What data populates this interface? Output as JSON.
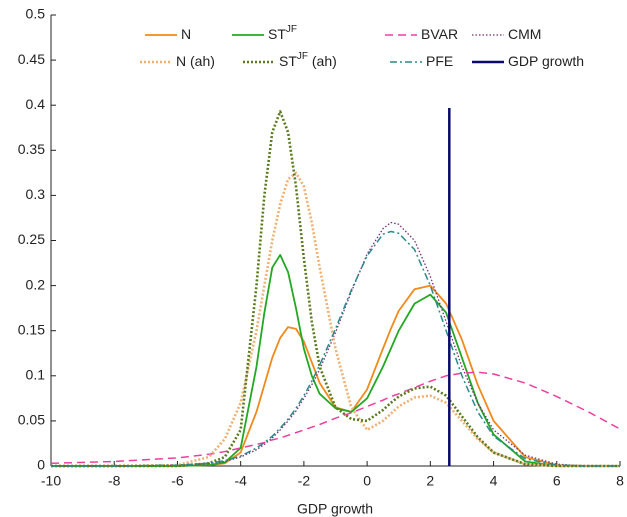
{
  "chart_data": {
    "type": "line",
    "xlabel": "GDP growth",
    "xlim": [
      -10,
      8
    ],
    "ylim": [
      0,
      0.5
    ],
    "xticks": [
      -10,
      -8,
      -6,
      -4,
      -2,
      0,
      2,
      4,
      6,
      8
    ],
    "yticks": [
      0,
      0.05,
      0.1,
      0.15,
      0.2,
      0.25,
      0.3,
      0.35,
      0.4,
      0.45,
      0.5
    ],
    "x": [
      -10,
      -8,
      -6,
      -5,
      -4.5,
      -4,
      -3.5,
      -3.25,
      -3,
      -2.75,
      -2.5,
      -2.25,
      -2,
      -1.75,
      -1.5,
      -1,
      -0.5,
      0,
      0.5,
      0.75,
      1,
      1.5,
      2,
      2.5,
      3,
      3.5,
      4,
      5,
      6,
      7,
      8
    ],
    "series": [
      {
        "name": "N",
        "color": "#f08a1c",
        "style": "solid",
        "values": [
          0,
          0,
          0,
          0.001,
          0.003,
          0.015,
          0.06,
          0.09,
          0.12,
          0.142,
          0.154,
          0.152,
          0.138,
          0.115,
          0.092,
          0.065,
          0.06,
          0.085,
          0.13,
          0.152,
          0.172,
          0.196,
          0.2,
          0.18,
          0.14,
          0.09,
          0.05,
          0.01,
          0.001,
          0,
          0
        ]
      },
      {
        "name": "ST",
        "name_sup": "JF",
        "color": "#22a822",
        "style": "solid",
        "values": [
          0,
          0,
          0,
          0.001,
          0.004,
          0.02,
          0.11,
          0.17,
          0.22,
          0.234,
          0.215,
          0.175,
          0.13,
          0.1,
          0.08,
          0.064,
          0.06,
          0.075,
          0.11,
          0.13,
          0.15,
          0.18,
          0.19,
          0.17,
          0.12,
          0.07,
          0.035,
          0.005,
          0,
          0,
          0
        ]
      },
      {
        "name": "BVAR",
        "color": "#ee3fa0",
        "style": "dashed",
        "values": [
          0.003,
          0.005,
          0.009,
          0.013,
          0.016,
          0.02,
          0.024,
          0.026,
          0.029,
          0.031,
          0.034,
          0.037,
          0.04,
          0.043,
          0.046,
          0.053,
          0.059,
          0.066,
          0.073,
          0.077,
          0.08,
          0.087,
          0.094,
          0.1,
          0.103,
          0.104,
          0.102,
          0.092,
          0.077,
          0.06,
          0.041
        ]
      },
      {
        "name": "CMM",
        "color": "#7a2a7a",
        "style": "dotted",
        "values": [
          0,
          0,
          0.001,
          0.003,
          0.005,
          0.01,
          0.018,
          0.024,
          0.031,
          0.04,
          0.05,
          0.061,
          0.075,
          0.09,
          0.107,
          0.148,
          0.193,
          0.235,
          0.263,
          0.27,
          0.268,
          0.25,
          0.21,
          0.16,
          0.11,
          0.07,
          0.04,
          0.012,
          0.002,
          0,
          0
        ]
      },
      {
        "name": "N (ah)",
        "color": "#f0b070",
        "style": "dotted-thick",
        "values": [
          0,
          0,
          0.001,
          0.01,
          0.03,
          0.07,
          0.15,
          0.2,
          0.25,
          0.29,
          0.318,
          0.325,
          0.31,
          0.27,
          0.22,
          0.13,
          0.065,
          0.04,
          0.05,
          0.058,
          0.066,
          0.076,
          0.078,
          0.07,
          0.05,
          0.03,
          0.015,
          0.002,
          0,
          0,
          0
        ]
      },
      {
        "name": "ST",
        "name_sup": "JF",
        "name_suffix": " (ah)",
        "color": "#5a7a1e",
        "style": "dotted-thick",
        "values": [
          0,
          0,
          0,
          0.003,
          0.01,
          0.04,
          0.2,
          0.3,
          0.37,
          0.393,
          0.37,
          0.31,
          0.23,
          0.16,
          0.11,
          0.065,
          0.052,
          0.05,
          0.062,
          0.07,
          0.077,
          0.086,
          0.088,
          0.078,
          0.055,
          0.032,
          0.015,
          0.002,
          0,
          0,
          0
        ]
      },
      {
        "name": "PFE",
        "color": "#2a8a8a",
        "style": "dashdot",
        "values": [
          0,
          0,
          0.001,
          0.003,
          0.006,
          0.011,
          0.02,
          0.026,
          0.033,
          0.042,
          0.052,
          0.064,
          0.078,
          0.094,
          0.112,
          0.152,
          0.195,
          0.233,
          0.257,
          0.26,
          0.258,
          0.24,
          0.2,
          0.15,
          0.1,
          0.06,
          0.033,
          0.008,
          0.001,
          0,
          0
        ]
      }
    ],
    "vline": {
      "name": "GDP growth",
      "x": 2.6,
      "color": "#0a0a6e"
    }
  }
}
